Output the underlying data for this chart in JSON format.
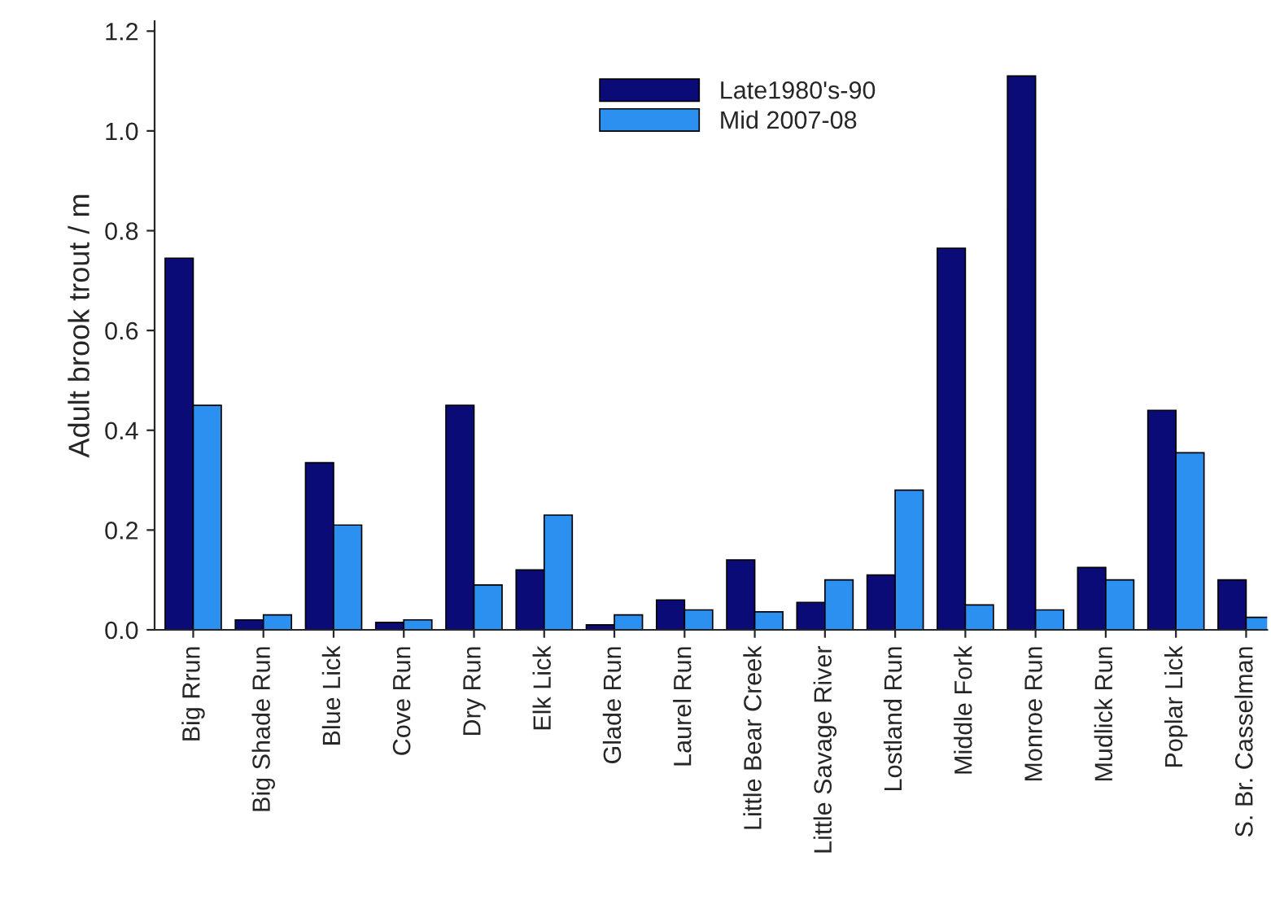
{
  "chart_data": {
    "type": "bar",
    "ylabel": "Adult brook trout / m",
    "categories": [
      "Big Rrun",
      "Big Shade Run",
      "Blue Lick",
      "Cove Run",
      "Dry Run",
      "Elk Lick",
      "Glade Run",
      "Laurel Run",
      "Little Bear Creek",
      "Little Savage River",
      "Lostland Run",
      "Middle Fork",
      "Monroe Run",
      "Mudlick Run",
      "Poplar Lick",
      "S. Br. Casselman"
    ],
    "series": [
      {
        "name": "Late1980's-90",
        "color": "#0b0b78",
        "values": [
          0.745,
          0.02,
          0.335,
          0.015,
          0.45,
          0.12,
          0.01,
          0.06,
          0.14,
          0.055,
          0.11,
          0.765,
          1.11,
          0.125,
          0.44,
          0.1
        ]
      },
      {
        "name": "Mid 2007-08",
        "color": "#2b90f0",
        "values": [
          0.45,
          0.03,
          0.21,
          0.02,
          0.09,
          0.23,
          0.03,
          0.04,
          0.036,
          0.1,
          0.28,
          0.05,
          0.04,
          0.1,
          0.355,
          0.025
        ]
      }
    ],
    "ylim": [
      0,
      1.22
    ],
    "yticks": [
      {
        "value": 0,
        "label": "0.0"
      },
      {
        "value": 0.2,
        "label": "0.2"
      },
      {
        "value": 0.4,
        "label": "0.4"
      },
      {
        "value": 0.6,
        "label": "0.6"
      },
      {
        "value": 0.8,
        "label": "0.8"
      },
      {
        "value": 1.0,
        "label": "1.0"
      },
      {
        "value": 1.2,
        "label": "1.2"
      }
    ],
    "grid": false,
    "legend": "top"
  }
}
